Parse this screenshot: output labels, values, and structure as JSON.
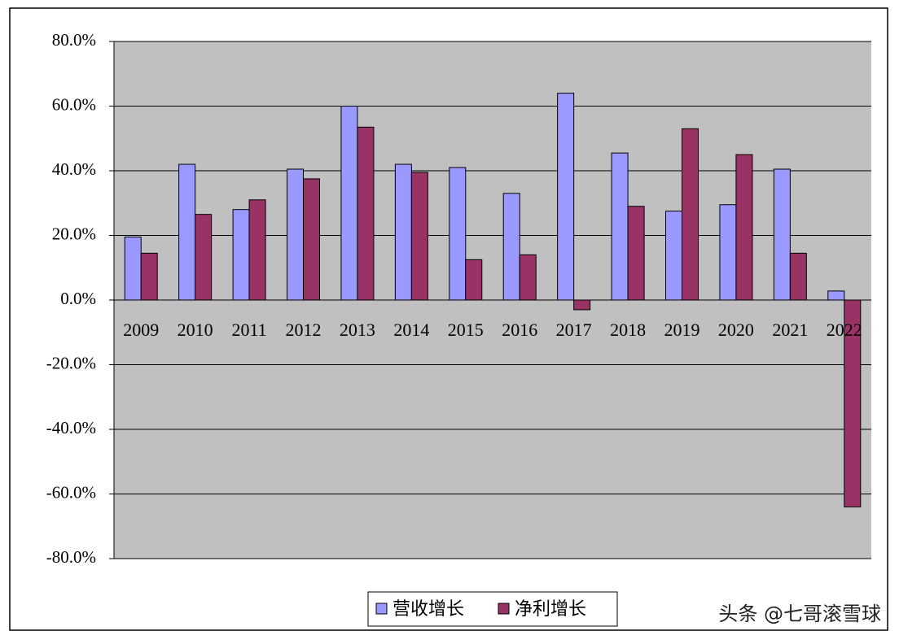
{
  "chart_data": {
    "type": "bar",
    "categories": [
      "2009",
      "2010",
      "2011",
      "2012",
      "2013",
      "2014",
      "2015",
      "2016",
      "2017",
      "2018",
      "2019",
      "2020",
      "2021",
      "2022"
    ],
    "series": [
      {
        "name": "营收增长",
        "color": "#9999ff",
        "values": [
          19.5,
          42,
          28,
          40.5,
          60,
          42,
          41,
          33,
          64,
          45.5,
          27.5,
          29.5,
          40.5,
          2.8
        ]
      },
      {
        "name": "净利增长",
        "color": "#993366",
        "values": [
          14.5,
          26.5,
          31,
          37.5,
          53.5,
          39.5,
          12.5,
          14,
          -3,
          29,
          53,
          45,
          14.5,
          -64
        ]
      }
    ],
    "ylim": [
      -80,
      80
    ],
    "yticks": [
      {
        "value": 80,
        "label": "80.0%"
      },
      {
        "value": 60,
        "label": "60.0%"
      },
      {
        "value": 40,
        "label": "40.0%"
      },
      {
        "value": 20,
        "label": "20.0%"
      },
      {
        "value": 0,
        "label": "0.0%"
      },
      {
        "value": -20,
        "label": "-20.0%"
      },
      {
        "value": -40,
        "label": "-40.0%"
      },
      {
        "value": -60,
        "label": "-60.0%"
      },
      {
        "value": -80,
        "label": "-80.0%"
      }
    ],
    "grid": true,
    "plot_background": "#c0c0c0",
    "legend": "bottom",
    "watermark": "头条 @七哥滚雪球"
  }
}
